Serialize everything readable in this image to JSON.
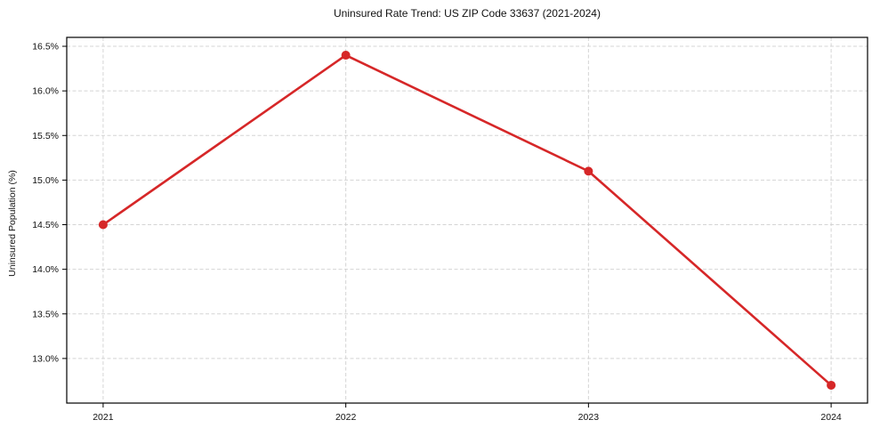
{
  "chart_data": {
    "type": "line",
    "title": "Uninsured Rate Trend: US ZIP Code 33637 (2021-2024)",
    "xlabel": "",
    "ylabel": "Uninsured Population (%)",
    "categories": [
      2021,
      2022,
      2023,
      2024
    ],
    "values": [
      14.5,
      16.4,
      15.1,
      12.7
    ],
    "xtick_labels": [
      "2021",
      "2022",
      "2023",
      "2024"
    ],
    "yticks": [
      13.0,
      13.5,
      14.0,
      14.5,
      15.0,
      15.5,
      16.0,
      16.5
    ],
    "ytick_labels": [
      "13.0%",
      "13.5%",
      "14.0%",
      "14.5%",
      "15.0%",
      "15.5%",
      "16.0%",
      "16.5%"
    ],
    "xlim": [
      2020.85,
      2024.15
    ],
    "ylim": [
      12.5,
      16.6
    ],
    "grid": "dashed",
    "legend": "none",
    "line_color": "#d62728",
    "marker": "circle",
    "grid_color": "#d0d0d0",
    "spine_color": "#000000",
    "background_color": "#ffffff"
  }
}
